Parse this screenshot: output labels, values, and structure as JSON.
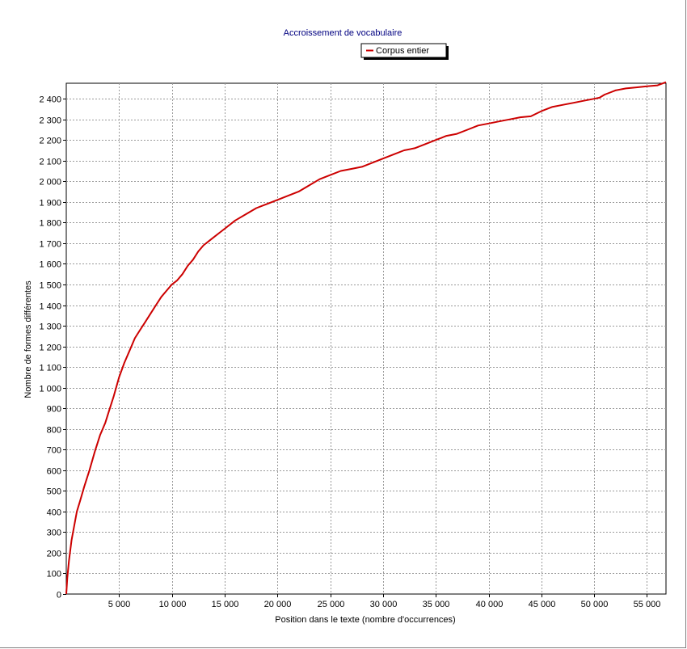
{
  "chart_data": {
    "type": "line",
    "title": "Accroissement de vocabulaire",
    "xlabel": "Position dans le texte (nombre d'occurrences)",
    "ylabel": "Nombre de formes différentes",
    "xlim": [
      0,
      56800
    ],
    "ylim": [
      0,
      2475
    ],
    "x_ticks": [
      5000,
      10000,
      15000,
      20000,
      25000,
      30000,
      35000,
      40000,
      45000,
      50000,
      55000
    ],
    "x_tick_labels": [
      "5 000",
      "10 000",
      "15 000",
      "20 000",
      "25 000",
      "30 000",
      "35 000",
      "40 000",
      "45 000",
      "50 000",
      "55 000"
    ],
    "y_ticks": [
      0,
      100,
      200,
      300,
      400,
      500,
      600,
      700,
      800,
      900,
      1000,
      1100,
      1200,
      1300,
      1400,
      1500,
      1600,
      1700,
      1800,
      1900,
      2000,
      2100,
      2200,
      2300,
      2400
    ],
    "y_tick_labels": [
      "0",
      "100",
      "200",
      "300",
      "400",
      "500",
      "600",
      "700",
      "800",
      "900",
      "1 000",
      "1 100",
      "1 200",
      "1 300",
      "1 400",
      "1 500",
      "1 600",
      "1 700",
      "1 800",
      "1 900",
      "2 000",
      "2 100",
      "2 200",
      "2 300",
      "2 400"
    ],
    "grid": true,
    "legend_position": "top-center",
    "title_color": "#000080",
    "series": [
      {
        "name": "Corpus entier",
        "color": "#cc0000",
        "x": [
          0,
          100,
          250,
          500,
          750,
          1000,
          1300,
          1700,
          2200,
          2700,
          3200,
          3700,
          4000,
          4500,
          5000,
          5500,
          6000,
          6500,
          7000,
          7500,
          8000,
          8500,
          9000,
          9500,
          10000,
          10500,
          11000,
          11500,
          12000,
          12500,
          13000,
          13500,
          14000,
          14500,
          15000,
          16000,
          17000,
          18000,
          19000,
          20000,
          21000,
          22000,
          23000,
          24000,
          25000,
          26000,
          27000,
          28000,
          29000,
          30000,
          31000,
          32000,
          33000,
          34000,
          35000,
          35500,
          36000,
          37000,
          38000,
          39000,
          40000,
          41000,
          42000,
          43000,
          44000,
          45000,
          45500,
          46000,
          47000,
          48000,
          49000,
          50000,
          50500,
          51000,
          51500,
          52000,
          53000,
          54000,
          55000,
          56000,
          56800
        ],
        "values": [
          0,
          80,
          160,
          260,
          330,
          400,
          450,
          520,
          600,
          690,
          770,
          830,
          880,
          960,
          1050,
          1120,
          1180,
          1240,
          1280,
          1320,
          1360,
          1400,
          1440,
          1470,
          1500,
          1520,
          1550,
          1590,
          1620,
          1660,
          1690,
          1710,
          1730,
          1750,
          1770,
          1810,
          1840,
          1870,
          1890,
          1910,
          1930,
          1950,
          1980,
          2010,
          2030,
          2050,
          2060,
          2070,
          2090,
          2110,
          2130,
          2150,
          2160,
          2180,
          2200,
          2210,
          2220,
          2230,
          2250,
          2270,
          2280,
          2290,
          2300,
          2310,
          2315,
          2340,
          2350,
          2360,
          2370,
          2380,
          2390,
          2400,
          2405,
          2420,
          2430,
          2440,
          2450,
          2455,
          2460,
          2465,
          2480
        ]
      }
    ]
  }
}
